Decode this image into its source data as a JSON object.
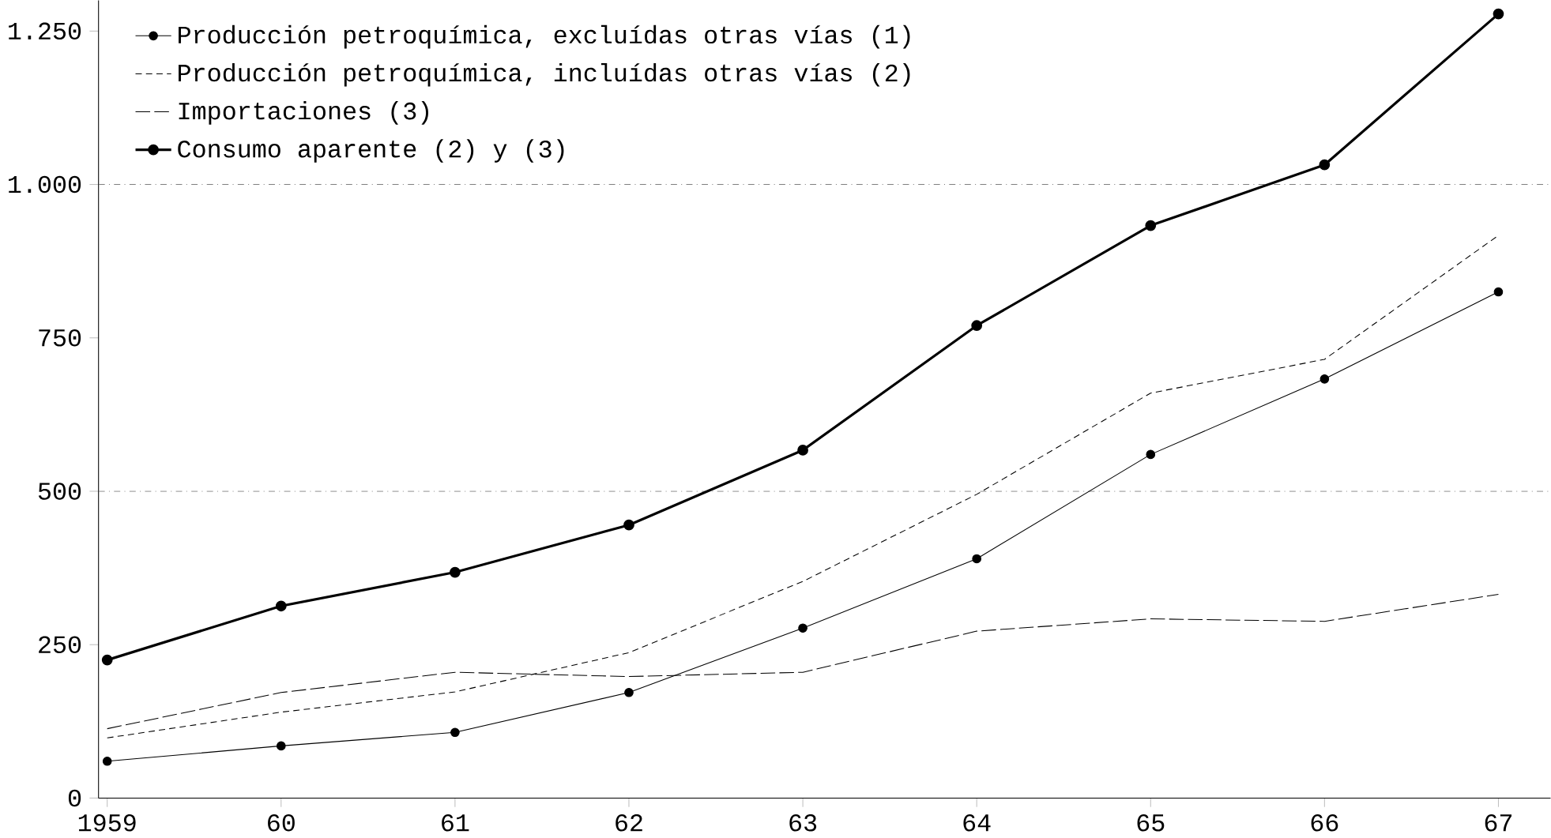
{
  "chart_data": {
    "type": "line",
    "categories": [
      "1959",
      "60",
      "61",
      "62",
      "63",
      "64",
      "65",
      "66",
      "67"
    ],
    "series": [
      {
        "name": "Producción petroquímica, excluídas otras vías (1)",
        "color": "#000000",
        "line_style": "solid",
        "marker": "circle",
        "values": [
          60,
          85,
          107,
          172,
          277,
          390,
          560,
          683,
          825
        ]
      },
      {
        "name": "Producción petroquímica, incluídas otras vías (2)",
        "color": "#000000",
        "line_style": "dashed",
        "values": [
          98,
          140,
          173,
          237,
          353,
          495,
          660,
          715,
          917
        ]
      },
      {
        "name": "Importaciones (3)",
        "color": "#000000",
        "line_style": "long dashed",
        "values": [
          113,
          172,
          205,
          198,
          205,
          272,
          292,
          288,
          332
        ]
      },
      {
        "name": "Consumo aparente (2) y (3)",
        "color": "#000000",
        "line_style": "solid",
        "marker": "circle",
        "values": [
          225,
          313,
          368,
          445,
          567,
          770,
          933,
          1032,
          1278
        ]
      }
    ],
    "ylim": [
      0,
      1300
    ],
    "yticks": [
      0,
      250,
      500,
      750,
      {
        "value": 1000,
        "label": "1.000"
      },
      {
        "value": 1250,
        "label": "1.250"
      }
    ],
    "ref_lines": [
      {
        "axis": "y",
        "value": 500
      },
      {
        "axis": "y",
        "value": 1000
      }
    ],
    "legend": "top left"
  }
}
